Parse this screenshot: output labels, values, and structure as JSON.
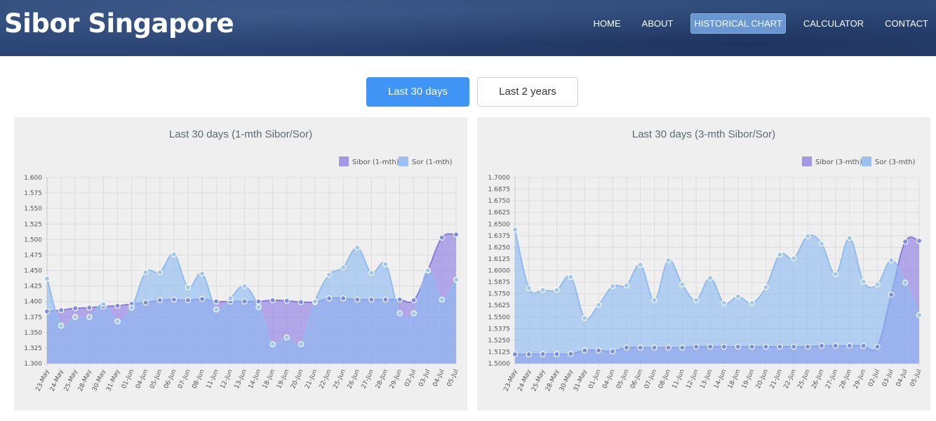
{
  "brand": "Sibor Singapore",
  "nav": [
    {
      "label": "HOME",
      "active": false
    },
    {
      "label": "ABOUT",
      "active": false
    },
    {
      "label": "HISTORICAL CHART",
      "active": true
    },
    {
      "label": "CALCULATOR",
      "active": false
    },
    {
      "label": "CONTACT",
      "active": false
    }
  ],
  "range_buttons": {
    "last30": "Last 30 days",
    "last2y": "Last 2 years"
  },
  "colors": {
    "sibor": "#8a7ae4",
    "sor": "#9ec5f0",
    "active_button": "#3f94f6"
  },
  "chart_data": [
    {
      "type": "area",
      "title": "Last 30 days (1-mth Sibor/Sor)",
      "x": [
        "23-May",
        "24-May",
        "25-May",
        "28-May",
        "30-May",
        "31-May",
        "01-Jun",
        "04-Jun",
        "05-Jun",
        "06-Jun",
        "07-Jun",
        "08-Jun",
        "11-Jun",
        "12-Jun",
        "13-Jun",
        "14-Jun",
        "18-Jun",
        "19-Jun",
        "20-Jun",
        "21-Jun",
        "22-Jun",
        "25-Jun",
        "26-Jun",
        "27-Jun",
        "28-Jun",
        "29-Jun",
        "02-Jul",
        "03-Jul",
        "04-Jul",
        "05-Jul"
      ],
      "series": [
        {
          "name": "Sibor (1-mth)",
          "values": [
            1.384,
            1.386,
            1.389,
            1.39,
            1.392,
            1.393,
            1.396,
            1.398,
            1.402,
            1.403,
            1.402,
            1.404,
            1.4,
            1.4,
            1.4,
            1.4,
            1.402,
            1.401,
            1.399,
            1.399,
            1.405,
            1.405,
            1.403,
            1.403,
            1.403,
            1.403,
            1.402,
            1.45,
            1.503,
            1.508
          ]
        },
        {
          "name": "Sor (1-mth)",
          "values": [
            1.437,
            1.361,
            1.375,
            1.375,
            1.396,
            1.368,
            1.39,
            1.447,
            1.447,
            1.476,
            1.423,
            1.445,
            1.387,
            1.405,
            1.425,
            1.391,
            1.331,
            1.342,
            1.331,
            1.4,
            1.443,
            1.455,
            1.487,
            1.446,
            1.46,
            1.381,
            1.381,
            1.45,
            1.403,
            1.435
          ]
        }
      ],
      "ylim": [
        1.3,
        1.6
      ],
      "yticks": [
        "1.600",
        "1.575",
        "1.550",
        "1.525",
        "1.500",
        "1.475",
        "1.450",
        "1.425",
        "1.400",
        "1.375",
        "1.350",
        "1.325",
        "1.300"
      ],
      "grid": true,
      "legend_position": "top-right"
    },
    {
      "type": "area",
      "title": "Last 30 days (3-mth Sibor/Sor)",
      "x": [
        "23-May",
        "24-May",
        "25-May",
        "28-May",
        "30-May",
        "31-May",
        "01-Jun",
        "04-Jun",
        "05-Jun",
        "06-Jun",
        "07-Jun",
        "08-Jun",
        "11-Jun",
        "12-Jun",
        "13-Jun",
        "14-Jun",
        "18-Jun",
        "19-Jun",
        "20-Jun",
        "21-Jun",
        "22-Jun",
        "25-Jun",
        "26-Jun",
        "27-Jun",
        "28-Jun",
        "29-Jun",
        "02-Jul",
        "03-Jul",
        "04-Jul",
        "05-Jul"
      ],
      "series": [
        {
          "name": "Sibor (3-mth)",
          "values": [
            1.5098,
            1.5098,
            1.51,
            1.51,
            1.5103,
            1.514,
            1.514,
            1.513,
            1.517,
            1.517,
            1.517,
            1.517,
            1.517,
            1.518,
            1.518,
            1.518,
            1.518,
            1.518,
            1.518,
            1.518,
            1.518,
            1.518,
            1.519,
            1.519,
            1.519,
            1.519,
            1.518,
            1.574,
            1.631,
            1.632
          ]
        },
        {
          "name": "Sor (3-mth)",
          "values": [
            1.644,
            1.581,
            1.579,
            1.579,
            1.593,
            1.549,
            1.563,
            1.583,
            1.584,
            1.606,
            1.568,
            1.611,
            1.585,
            1.568,
            1.592,
            1.565,
            1.572,
            1.565,
            1.582,
            1.617,
            1.613,
            1.637,
            1.629,
            1.596,
            1.635,
            1.588,
            1.585,
            1.611,
            1.587,
            1.552
          ]
        }
      ],
      "ylim": [
        1.5,
        1.7
      ],
      "yticks": [
        "1.7000",
        "1.6875",
        "1.6750",
        "1.6625",
        "1.6500",
        "1.6375",
        "1.6250",
        "1.6125",
        "1.6000",
        "1.5875",
        "1.5750",
        "1.5625",
        "1.5500",
        "1.5375",
        "1.5250",
        "1.5125",
        "1.5000"
      ],
      "grid": true,
      "legend_position": "top-right"
    }
  ]
}
